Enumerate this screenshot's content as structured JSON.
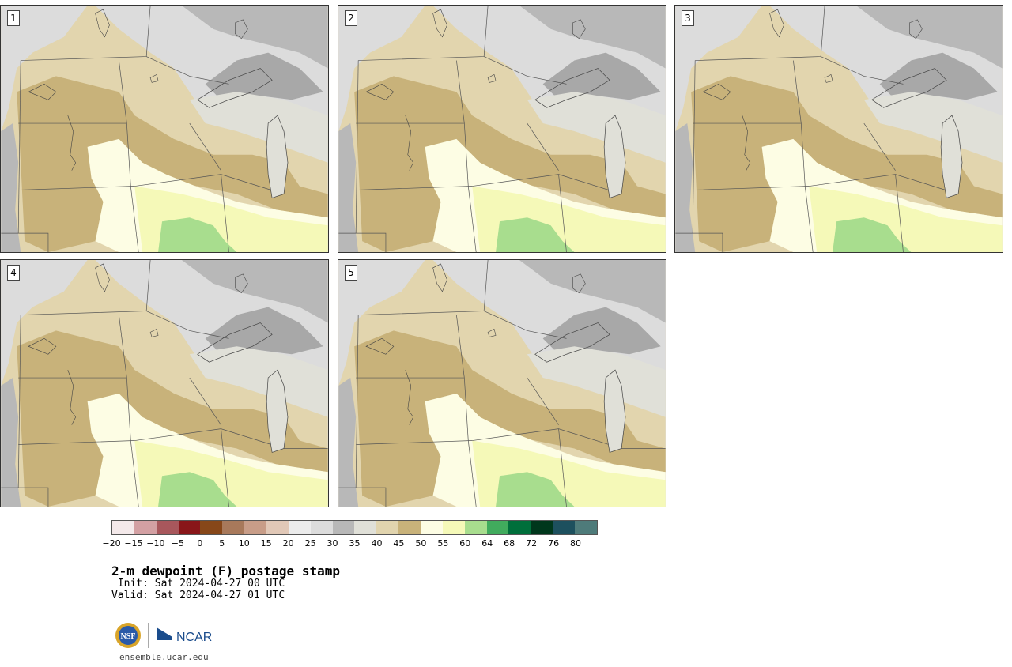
{
  "panels": [
    {
      "label": "1"
    },
    {
      "label": "2"
    },
    {
      "label": "3"
    },
    {
      "label": "4"
    },
    {
      "label": "5"
    }
  ],
  "legend": {
    "colors": [
      "#f4e9ea",
      "#d3a0a3",
      "#a8575c",
      "#891619",
      "#874719",
      "#a8795b",
      "#c89d88",
      "#e1c8b7",
      "#ececec",
      "#dcdcdc",
      "#b8b8b8",
      "#e0e0d8",
      "#e1d4ae",
      "#c8b27a",
      "#fdfde4",
      "#f5f9b8",
      "#a8dd8e",
      "#41ab5d",
      "#006f3b",
      "#00371c",
      "#1d505e",
      "#4e7b7a"
    ],
    "ticks": [
      "−20",
      "−15",
      "−10",
      "−5",
      "0",
      "5",
      "10",
      "15",
      "20",
      "25",
      "30",
      "35",
      "40",
      "45",
      "50",
      "55",
      "60",
      "64",
      "68",
      "72",
      "76",
      "80"
    ]
  },
  "title": "2-m dewpoint (F) postage stamp",
  "init": " Init: Sat 2024-04-27 00 UTC",
  "valid": "Valid: Sat 2024-04-27 01 UTC",
  "logos": {
    "nsf": "NSF",
    "ncar": "NCAR"
  },
  "url": "ensemble.ucar.edu"
}
